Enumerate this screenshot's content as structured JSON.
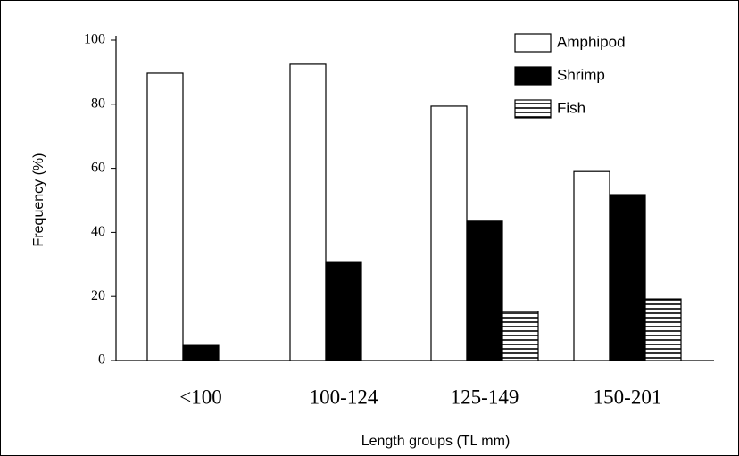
{
  "chart_data": {
    "type": "bar",
    "x_label": "Length groups (TL mm)",
    "y_label": "Frequency (%)",
    "categories": [
      "<100",
      "100-124",
      "125-149",
      "150-201"
    ],
    "series": [
      {
        "name": "Amphipod",
        "color": "#ffffff",
        "values": [
          89.7,
          92.5,
          79.4,
          59
        ]
      },
      {
        "name": "Shrimp",
        "color": "#000000",
        "values": [
          4.7,
          30.6,
          43.5,
          51.8
        ]
      },
      {
        "name": "Fish",
        "color": "#000000",
        "pattern": "horizontal-lines",
        "values": [
          0,
          0,
          15.3,
          19.2
        ]
      }
    ],
    "ylim": [
      0,
      100
    ],
    "yticks": [
      0,
      20,
      40,
      60,
      80,
      100
    ],
    "legend": "upper right"
  }
}
